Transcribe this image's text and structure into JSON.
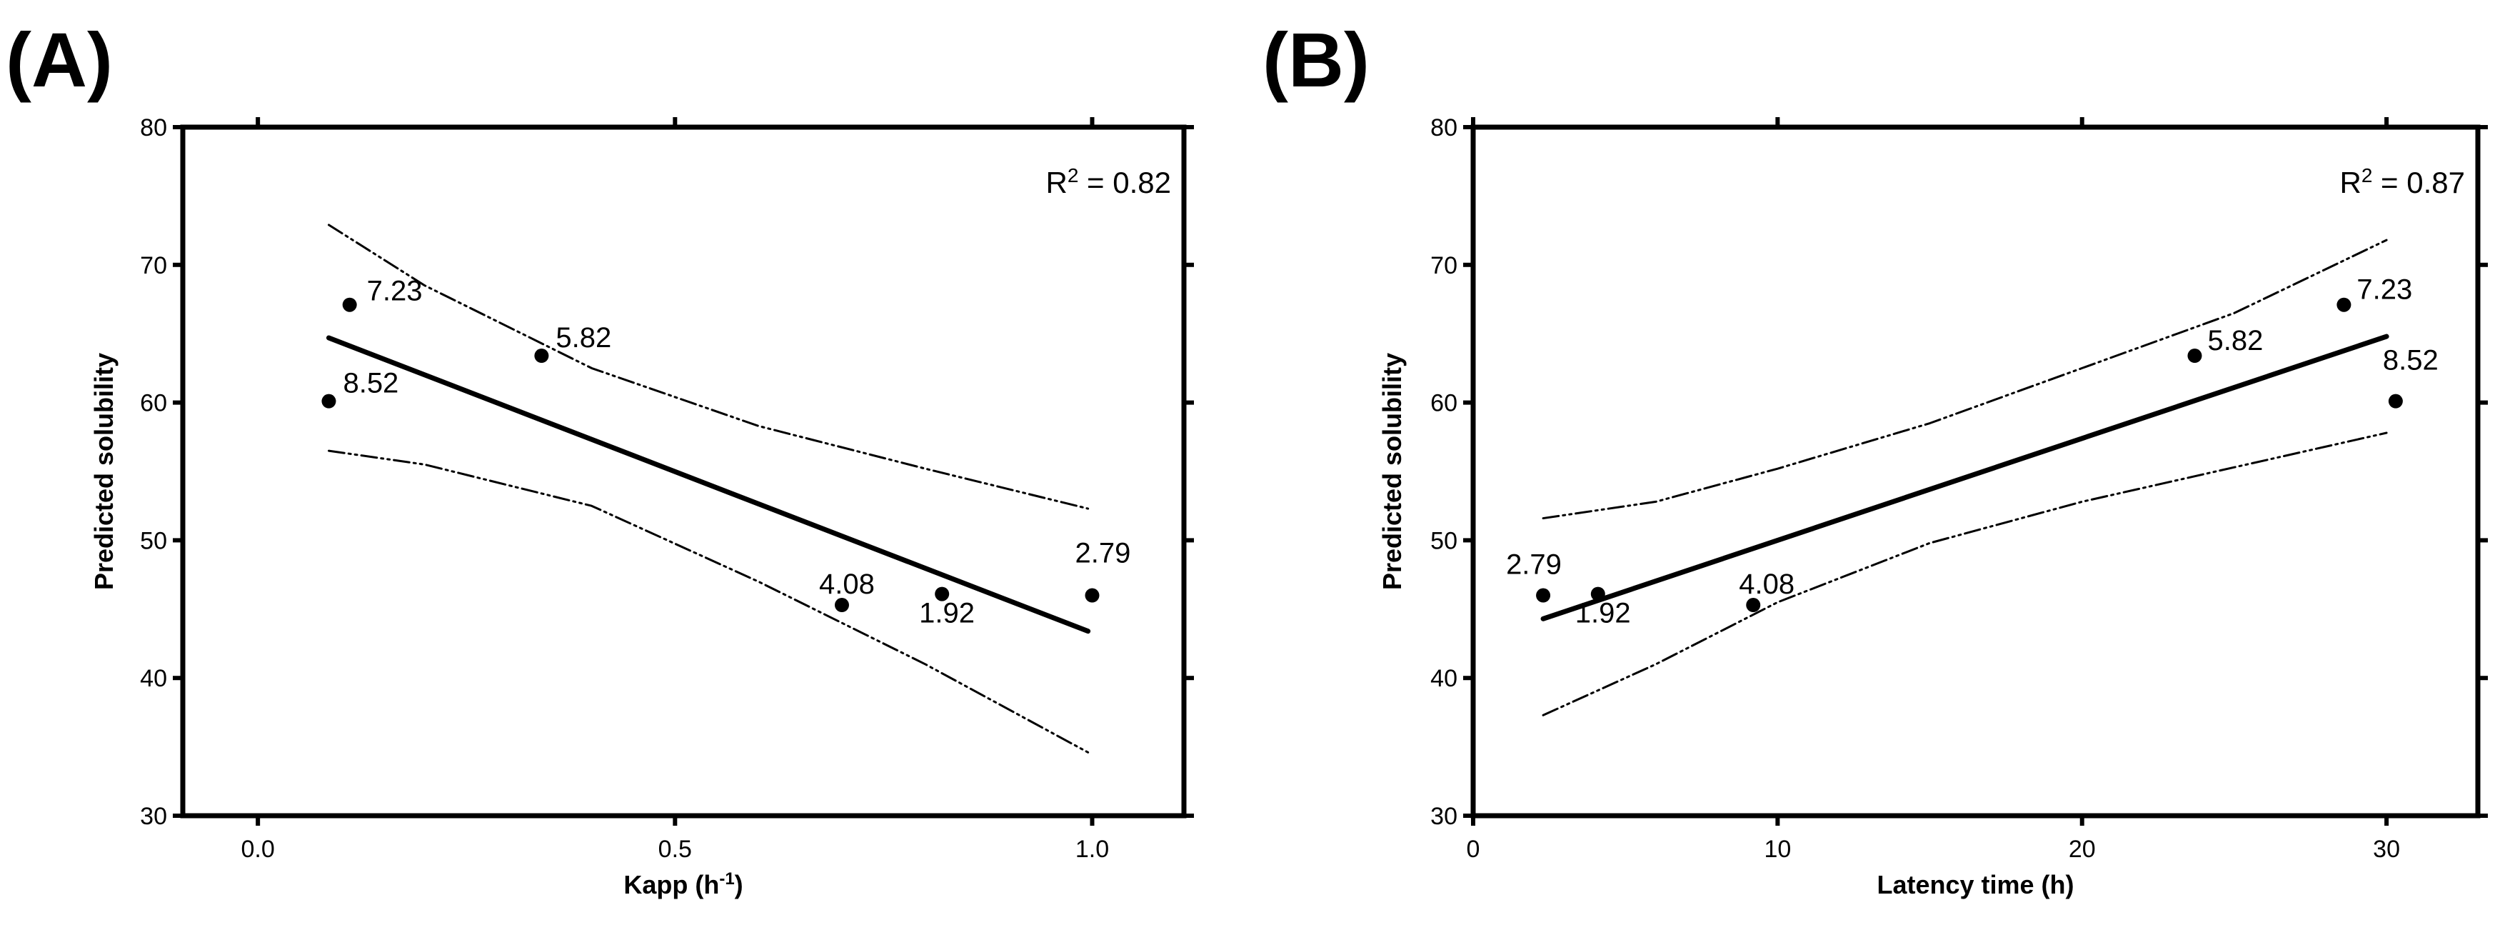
{
  "chart_data": [
    {
      "panel_label": "(A)",
      "type": "scatter",
      "xlabel": "Kapp",
      "xlabel_unit_base": "h",
      "xlabel_unit_exp": "-1",
      "ylabel": "Predicted solubility",
      "xlim": [
        -0.09,
        1.11
      ],
      "ylim": [
        30,
        80
      ],
      "xticks": [
        0.0,
        0.5,
        1.0
      ],
      "xtick_labels": [
        "0.0",
        "0.5",
        "1.0"
      ],
      "yticks": [
        30,
        40,
        50,
        60,
        70,
        80
      ],
      "ytick_labels": [
        "30",
        "40",
        "50",
        "60",
        "70",
        "80"
      ],
      "r2_prefix": "R",
      "r2_sup": "2",
      "r2_text": "= 0.82",
      "points": [
        {
          "x": 0.085,
          "y": 60.1,
          "label": "8.52"
        },
        {
          "x": 0.11,
          "y": 67.1,
          "label": "7.23"
        },
        {
          "x": 0.34,
          "y": 63.4,
          "label": "5.82"
        },
        {
          "x": 0.7,
          "y": 45.3,
          "label": "4.08"
        },
        {
          "x": 0.82,
          "y": 46.1,
          "label": "1.92"
        },
        {
          "x": 1.0,
          "y": 46.0,
          "label": "2.79"
        }
      ],
      "fit_line": {
        "x": [
          0.085,
          0.995
        ],
        "y": [
          64.7,
          43.4
        ]
      },
      "ci_upper": {
        "x": [
          0.085,
          0.2,
          0.4,
          0.6,
          0.8,
          0.995
        ],
        "y": [
          72.9,
          68.5,
          62.5,
          58.3,
          55.2,
          52.3
        ]
      },
      "ci_lower": {
        "x": [
          0.085,
          0.2,
          0.4,
          0.6,
          0.8,
          0.995
        ],
        "y": [
          56.5,
          55.5,
          52.5,
          47.0,
          41.0,
          34.6
        ]
      },
      "grid": false,
      "legend": "none"
    },
    {
      "panel_label": "(B)",
      "type": "scatter",
      "xlabel": "Latency time (h)",
      "ylabel": "Predicted solubility",
      "xlim": [
        0,
        33
      ],
      "ylim": [
        30,
        80
      ],
      "xticks": [
        0,
        10,
        20,
        30
      ],
      "xtick_labels": [
        "0",
        "10",
        "20",
        "30"
      ],
      "yticks": [
        30,
        40,
        50,
        60,
        70,
        80
      ],
      "ytick_labels": [
        "30",
        "40",
        "50",
        "60",
        "70",
        "80"
      ],
      "r2_prefix": "R",
      "r2_sup": "2",
      "r2_text": "= 0.87",
      "points": [
        {
          "x": 2.3,
          "y": 46.0,
          "label": "2.79"
        },
        {
          "x": 4.1,
          "y": 46.1,
          "label": "1.92"
        },
        {
          "x": 9.2,
          "y": 45.3,
          "label": "4.08"
        },
        {
          "x": 23.7,
          "y": 63.4,
          "label": "5.82"
        },
        {
          "x": 28.6,
          "y": 67.1,
          "label": "7.23"
        },
        {
          "x": 30.3,
          "y": 60.1,
          "label": "8.52"
        }
      ],
      "fit_line": {
        "x": [
          2.3,
          30.0
        ],
        "y": [
          44.3,
          64.8
        ]
      },
      "ci_upper": {
        "x": [
          2.3,
          6,
          10,
          15,
          20,
          25,
          30.0
        ],
        "y": [
          51.6,
          52.8,
          55.2,
          58.5,
          62.5,
          66.5,
          71.8
        ]
      },
      "ci_lower": {
        "x": [
          2.3,
          6,
          10,
          15,
          20,
          25,
          30.0
        ],
        "y": [
          37.3,
          41.0,
          45.5,
          49.8,
          52.8,
          55.3,
          57.8
        ]
      },
      "grid": false,
      "legend": "none"
    }
  ]
}
